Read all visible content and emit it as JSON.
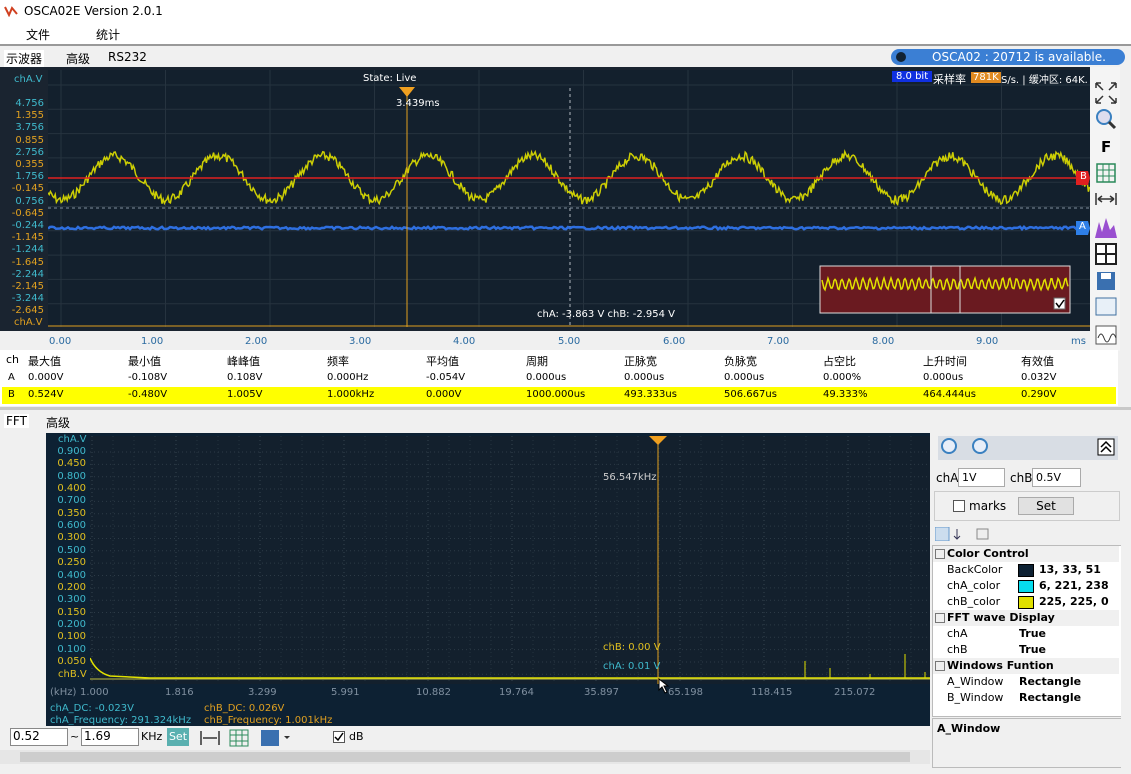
{
  "window": {
    "title": "OSCA02E  Version 2.0.1"
  },
  "menu": [
    "文件",
    "统计"
  ],
  "tabs": [
    "示波器",
    "高级",
    "RS232"
  ],
  "status": "OSCA02 : 20712 is available.",
  "scope": {
    "state": "State: Live",
    "cursor": "3.439ms",
    "bits": "8.0 bit",
    "rate_label": "采样率",
    "rate": "781K",
    "rate_unit": "S/s. | 缓冲区: 64K.",
    "y_title": "chA.V",
    "y_labels": [
      {
        "text": "4.756",
        "color": "#3fb9cc"
      },
      {
        "text": "1.355",
        "color": "#e0a020"
      },
      {
        "text": "3.756",
        "color": "#3fb9cc"
      },
      {
        "text": "0.855",
        "color": "#e0a020"
      },
      {
        "text": "2.756",
        "color": "#3fb9cc"
      },
      {
        "text": "0.355",
        "color": "#e0a020"
      },
      {
        "text": "1.756",
        "color": "#3fb9cc"
      },
      {
        "text": "-0.145",
        "color": "#e0a020"
      },
      {
        "text": "0.756",
        "color": "#3fb9cc"
      },
      {
        "text": "-0.645",
        "color": "#e0a020"
      },
      {
        "text": "-0.244",
        "color": "#3fb9cc"
      },
      {
        "text": "-1.145",
        "color": "#e0a020"
      },
      {
        "text": "-1.244",
        "color": "#3fb9cc"
      },
      {
        "text": "-1.645",
        "color": "#e0a020"
      },
      {
        "text": "-2.244",
        "color": "#3fb9cc"
      },
      {
        "text": "-2.145",
        "color": "#e0a020"
      },
      {
        "text": "-3.244",
        "color": "#3fb9cc"
      },
      {
        "text": "-2.645",
        "color": "#e0a020"
      }
    ],
    "y_bottom": "chA.V",
    "x_labels": [
      "0.00",
      "1.00",
      "2.00",
      "3.00",
      "4.00",
      "5.00",
      "6.00",
      "7.00",
      "8.00",
      "9.00"
    ],
    "x_unit": "ms",
    "readout": "chA: -3.863 V  chB: -2.954 V",
    "marker_a": "A",
    "marker_b": "B",
    "fit": "F"
  },
  "measure": {
    "header": [
      "ch",
      "最大值",
      "最小值",
      "峰峰值",
      "频率",
      "平均值",
      "周期",
      "正脉宽",
      "负脉宽",
      "占空比",
      "上升时间",
      "有效值"
    ],
    "rows": [
      [
        "A",
        "0.000V",
        "-0.108V",
        "0.108V",
        "0.000Hz",
        "-0.054V",
        "0.000us",
        "0.000us",
        "0.000us",
        "0.000%",
        "0.000us",
        "0.032V"
      ],
      [
        "B",
        "0.524V",
        "-0.480V",
        "1.005V",
        "1.000kHz",
        "0.000V",
        "1000.000us",
        "493.333us",
        "506.667us",
        "49.333%",
        "464.444us",
        "0.290V"
      ]
    ]
  },
  "fft_tabs": [
    "FFT",
    "高级"
  ],
  "fft": {
    "y_title": "chA.V",
    "y_labels": [
      {
        "text": "0.900",
        "color": "#3fb9cc"
      },
      {
        "text": "0.450",
        "color": "#e0c020"
      },
      {
        "text": "0.800",
        "color": "#3fb9cc"
      },
      {
        "text": "0.400",
        "color": "#e0c020"
      },
      {
        "text": "0.700",
        "color": "#3fb9cc"
      },
      {
        "text": "0.350",
        "color": "#e0c020"
      },
      {
        "text": "0.600",
        "color": "#3fb9cc"
      },
      {
        "text": "0.300",
        "color": "#e0c020"
      },
      {
        "text": "0.500",
        "color": "#3fb9cc"
      },
      {
        "text": "0.250",
        "color": "#e0c020"
      },
      {
        "text": "0.400",
        "color": "#3fb9cc"
      },
      {
        "text": "0.200",
        "color": "#e0c020"
      },
      {
        "text": "0.300",
        "color": "#3fb9cc"
      },
      {
        "text": "0.150",
        "color": "#e0c020"
      },
      {
        "text": "0.200",
        "color": "#3fb9cc"
      },
      {
        "text": "0.100",
        "color": "#e0c020"
      },
      {
        "text": "0.100",
        "color": "#3fb9cc"
      },
      {
        "text": "0.050",
        "color": "#e0c020"
      }
    ],
    "y_bottom": "chB.V",
    "x_unit": "(kHz)",
    "x_labels": [
      "1.000",
      "1.816",
      "3.299",
      "5.991",
      "10.882",
      "19.764",
      "35.897",
      "65.198",
      "118.415",
      "215.072"
    ],
    "cursor": "56.547kHz",
    "chB_readout": "chB: 0.00 V",
    "chA_readout": "chA: 0.01 V",
    "chA_dc": "chA_DC: -0.023V",
    "chA_freq": "chA_Frequency: 291.324kHz",
    "chB_dc": "chB_DC: 0.026V",
    "chB_freq": "chB_Frequency: 1.001kHz"
  },
  "toolbar": {
    "from": "0.52",
    "sep": "~",
    "to": "1.69",
    "unit": "KHz",
    "set": "Set",
    "db": "dB"
  },
  "panel": {
    "chA_label": "chA",
    "chA_value": "1V",
    "chB_label": "chB",
    "chB_value": "0.5V",
    "marks": "marks",
    "set": "Set",
    "groups": [
      {
        "name": "Color Control",
        "rows": [
          {
            "key": "BackColor",
            "value": "13, 33, 51",
            "swatch": "#0d2133"
          },
          {
            "key": "chA_color",
            "value": "6, 221, 238",
            "swatch": "#06ddee"
          },
          {
            "key": "chB_color",
            "value": "225, 225, 0",
            "swatch": "#e1e100"
          }
        ]
      },
      {
        "name": "FFT wave Display",
        "rows": [
          {
            "key": "chA",
            "value": "True"
          },
          {
            "key": "chB",
            "value": "True"
          }
        ]
      },
      {
        "name": "Windows Funtion",
        "rows": [
          {
            "key": "A_Window",
            "value": "Rectangle"
          },
          {
            "key": "B_Window",
            "value": "Rectangle"
          }
        ]
      }
    ],
    "description": "A_Window"
  }
}
